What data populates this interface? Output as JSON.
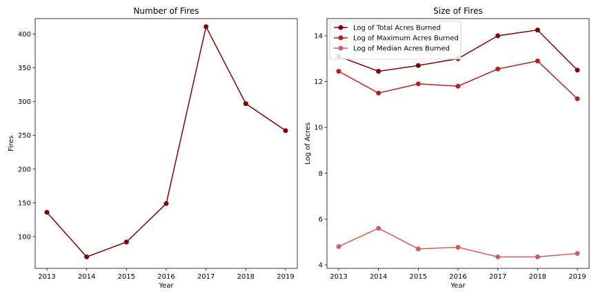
{
  "chart_data": [
    {
      "type": "line",
      "title": "Number of Fires",
      "xlabel": "Year",
      "ylabel": "Fires",
      "x": [
        2013,
        2014,
        2015,
        2016,
        2017,
        2018,
        2019
      ],
      "xticks": [
        "2013",
        "2014",
        "2015",
        "2016",
        "2017",
        "2018",
        "2019"
      ],
      "ylim": [
        53,
        423
      ],
      "yticks": [
        100,
        150,
        200,
        250,
        300,
        350,
        400
      ],
      "grid": false,
      "series": [
        {
          "name": "",
          "values": [
            136,
            70,
            92,
            149,
            411,
            297,
            257
          ],
          "color": "#800000"
        }
      ]
    },
    {
      "type": "line",
      "title": "Size of Fires",
      "xlabel": "Year",
      "ylabel": "Log of Acres",
      "x": [
        2013,
        2014,
        2015,
        2016,
        2017,
        2018,
        2019
      ],
      "xticks": [
        "2013",
        "2014",
        "2015",
        "2016",
        "2017",
        "2018",
        "2019"
      ],
      "ylim": [
        3.85,
        14.75
      ],
      "yticks": [
        4,
        6,
        8,
        10,
        12,
        14
      ],
      "grid": false,
      "legend_position": "top-left",
      "series": [
        {
          "name": "Log of Total Acres Burned",
          "values": [
            13.1,
            12.45,
            12.7,
            13.0,
            14.0,
            14.25,
            12.5
          ],
          "color": "#800000"
        },
        {
          "name": "Log of Maximum Acres Burned",
          "values": [
            12.45,
            11.5,
            11.9,
            11.8,
            12.55,
            12.9,
            11.25
          ],
          "color": "#b22222"
        },
        {
          "name": "Log of Median Acres Burned",
          "values": [
            4.8,
            5.6,
            4.7,
            4.77,
            4.35,
            4.35,
            4.5
          ],
          "color": "#cd5c5c"
        }
      ]
    }
  ]
}
